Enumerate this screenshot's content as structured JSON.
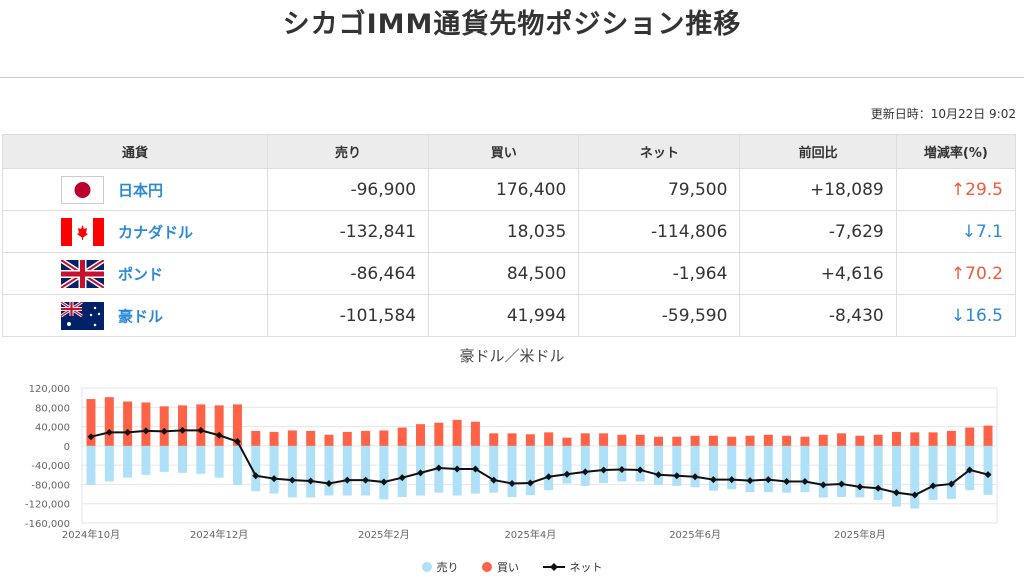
{
  "page_title": "シカゴIMM通貨先物ポジション推移",
  "updated": "更新日時：10月22日 9:02",
  "table": {
    "headers": [
      "通貨",
      "売り",
      "買い",
      "ネット",
      "前回比",
      "増減率(%)"
    ],
    "rows": [
      {
        "flag": "japan-flag",
        "name": "日本円",
        "sell": "-96,900",
        "buy": "176,400",
        "net": "79,500",
        "change": "+18,089",
        "rate": "29.5",
        "dir": "up"
      },
      {
        "flag": "canada-flag",
        "name": "カナダドル",
        "sell": "-132,841",
        "buy": "18,035",
        "net": "-114,806",
        "change": "-7,629",
        "rate": "7.1",
        "dir": "down"
      },
      {
        "flag": "uk-flag",
        "name": "ポンド",
        "sell": "-86,464",
        "buy": "84,500",
        "net": "-1,964",
        "change": "+4,616",
        "rate": "70.2",
        "dir": "up"
      },
      {
        "flag": "australia-flag",
        "name": "豪ドル",
        "sell": "-101,584",
        "buy": "41,994",
        "net": "-59,590",
        "change": "-8,430",
        "rate": "16.5",
        "dir": "down"
      }
    ],
    "arrows": {
      "up": "↑",
      "down": "↓"
    }
  },
  "chart_data": {
    "type": "bar",
    "title": "豪ドル／米ドル",
    "ylim": [
      -160000,
      120000
    ],
    "yticks": [
      "120,000",
      "80,000",
      "40,000",
      "0",
      "-40,000",
      "-80,000",
      "-120,000",
      "-160,000"
    ],
    "ytick_values": [
      120000,
      80000,
      40000,
      0,
      -40000,
      -80000,
      -120000,
      -160000
    ],
    "xticks": [
      {
        "label": "2024年10月",
        "index": 0
      },
      {
        "label": "2024年12月",
        "index": 7
      },
      {
        "label": "2025年2月",
        "index": 16
      },
      {
        "label": "2025年4月",
        "index": 24
      },
      {
        "label": "2025年6月",
        "index": 33
      },
      {
        "label": "2025年8月",
        "index": 42
      }
    ],
    "grid": true,
    "legend": "bottom",
    "colors": {
      "sell": "#aee0f8",
      "buy": "#ff6347",
      "net": "#111111"
    },
    "series": [
      {
        "name": "売り",
        "type": "bar",
        "values": [
          -81000,
          -74000,
          -66000,
          -60000,
          -54000,
          -56000,
          -58000,
          -66000,
          -81000,
          -94000,
          -99000,
          -107000,
          -107000,
          -103000,
          -103000,
          -103000,
          -111000,
          -106000,
          -103000,
          -97000,
          -103000,
          -99000,
          -97000,
          -106000,
          -102000,
          -92000,
          -78000,
          -83000,
          -77000,
          -74000,
          -74000,
          -81000,
          -83000,
          -86000,
          -93000,
          -90000,
          -96000,
          -96000,
          -97000,
          -96000,
          -107000,
          -106000,
          -107000,
          -112000,
          -126000,
          -130000,
          -112000,
          -110000,
          -92000,
          -101584
        ]
      },
      {
        "name": "買い",
        "type": "bar",
        "values": [
          97000,
          101000,
          92000,
          90000,
          82000,
          84000,
          86000,
          84000,
          86000,
          31000,
          29000,
          32000,
          31000,
          23000,
          29000,
          31000,
          32000,
          38000,
          45000,
          48000,
          54000,
          50000,
          26000,
          26000,
          24000,
          28000,
          17000,
          26000,
          26000,
          23000,
          23000,
          19000,
          19000,
          21000,
          21000,
          19000,
          21000,
          23000,
          21000,
          19000,
          23000,
          26000,
          21000,
          23000,
          29000,
          28000,
          28000,
          31000,
          38000,
          41994
        ]
      },
      {
        "name": "ネット",
        "type": "line",
        "values": [
          19000,
          28000,
          28000,
          31000,
          30000,
          32000,
          32000,
          22000,
          9000,
          -62000,
          -68000,
          -71000,
          -73000,
          -78000,
          -71000,
          -71000,
          -75000,
          -66000,
          -56000,
          -46000,
          -48000,
          -48000,
          -71000,
          -78000,
          -77000,
          -64000,
          -59000,
          -54000,
          -50000,
          -49000,
          -50000,
          -60000,
          -62000,
          -64000,
          -70000,
          -70000,
          -72000,
          -70000,
          -74000,
          -74000,
          -81000,
          -79000,
          -85000,
          -88000,
          -97000,
          -102000,
          -83000,
          -79000,
          -50000,
          -59590
        ]
      }
    ]
  }
}
